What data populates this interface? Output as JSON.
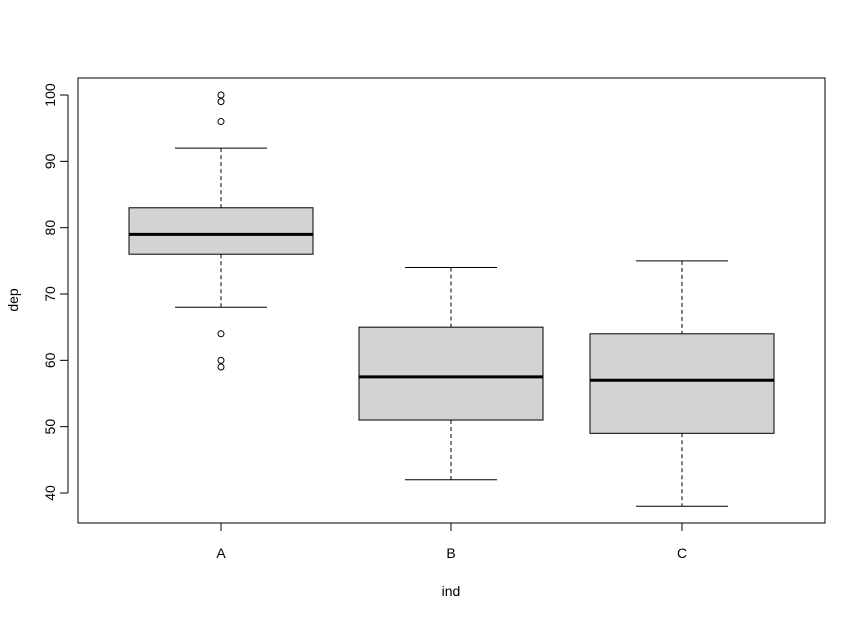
{
  "chart_data": {
    "type": "boxplot",
    "xlabel": "ind",
    "ylabel": "dep",
    "categories": [
      "A",
      "B",
      "C"
    ],
    "ylim": [
      35.5,
      102.5
    ],
    "yticks": [
      40,
      50,
      60,
      70,
      80,
      90,
      100
    ],
    "grid": false,
    "legend": "none",
    "colors": {
      "box_fill": "#d3d3d3",
      "stroke": "#000000",
      "background": "#ffffff"
    },
    "boxes": [
      {
        "name": "A",
        "whisker_low": 68,
        "q1": 76,
        "median": 79,
        "q3": 83,
        "whisker_high": 92,
        "outliers": [
          59,
          60,
          64,
          96,
          99,
          100
        ]
      },
      {
        "name": "B",
        "whisker_low": 42,
        "q1": 51,
        "median": 57.5,
        "q3": 65,
        "whisker_high": 74,
        "outliers": []
      },
      {
        "name": "C",
        "whisker_low": 38,
        "q1": 49,
        "median": 57,
        "q3": 64,
        "whisker_high": 75,
        "outliers": []
      }
    ]
  }
}
